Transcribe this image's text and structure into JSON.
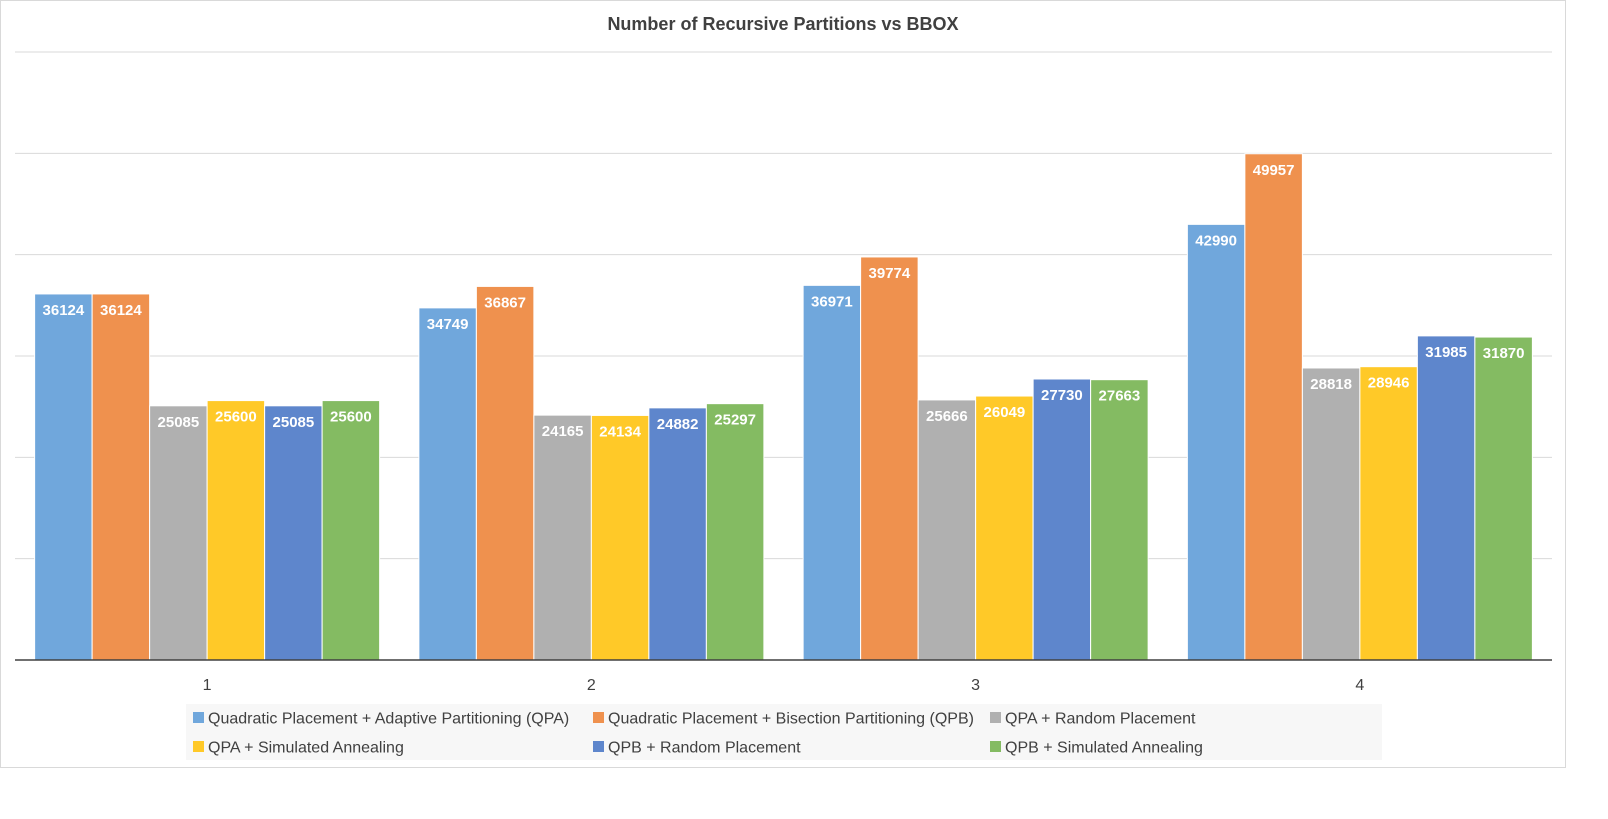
{
  "chart_data": {
    "type": "bar",
    "title": "Number of Recursive Partitions vs BBOX",
    "xlabel": "",
    "ylabel": "",
    "ylim": [
      0,
      60000
    ],
    "grid": true,
    "legend_position": "bottom",
    "categories": [
      "1",
      "2",
      "3",
      "4"
    ],
    "series": [
      {
        "name": "Quadratic Placement + Adaptive Partitioning (QPA)",
        "color": "#70A7DC",
        "values": [
          36124,
          34749,
          36971,
          42990
        ]
      },
      {
        "name": "Quadratic Placement + Bisection Partitioning (QPB)",
        "color": "#EF914E",
        "values": [
          36124,
          36867,
          39774,
          49957
        ]
      },
      {
        "name": "QPA + Random Placement",
        "color": "#B0B0B0",
        "values": [
          25085,
          24165,
          25666,
          28818
        ]
      },
      {
        "name": "QPA + Simulated Annealing",
        "color": "#FFC928",
        "values": [
          25600,
          24134,
          26049,
          28946
        ]
      },
      {
        "name": "QPB + Random Placement",
        "color": "#5E86CC",
        "values": [
          25085,
          24882,
          27730,
          31985
        ]
      },
      {
        "name": "QPB + Simulated Annealing",
        "color": "#84BB62",
        "values": [
          25600,
          25297,
          27663,
          31870
        ]
      }
    ]
  },
  "colors": {
    "gridline": "#d9d9d9",
    "axis": "#404040",
    "legend_bg": "#f7f7f7"
  }
}
